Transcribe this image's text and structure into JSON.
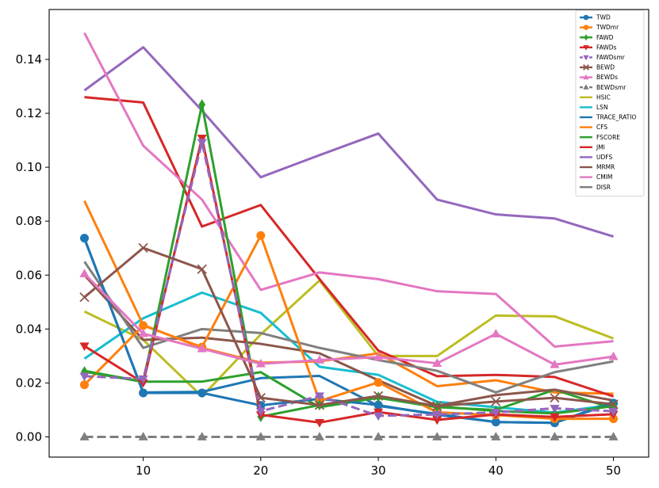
{
  "chart_data": {
    "type": "line",
    "title": "",
    "xlabel": "",
    "ylabel": "",
    "x": [
      5,
      10,
      15,
      20,
      25,
      30,
      35,
      40,
      45,
      50
    ],
    "xlim": [
      2,
      53
    ],
    "ylim": [
      -0.0075,
      0.1585
    ],
    "xticks": [
      10,
      20,
      30,
      40,
      50
    ],
    "xtick_labels": [
      "10",
      "20",
      "30",
      "40",
      "50"
    ],
    "yticks": [
      0.0,
      0.02,
      0.04,
      0.06,
      0.08,
      0.1,
      0.12,
      0.14
    ],
    "ytick_labels": [
      "0.00",
      "0.02",
      "0.04",
      "0.06",
      "0.08",
      "0.10",
      "0.12",
      "0.14"
    ],
    "grid": false,
    "legend_position": "top-right",
    "series": [
      {
        "name": "HSIC",
        "color": "#bcbd22",
        "style": "solid",
        "marker": "none",
        "values": [
          0.0465,
          0.036,
          0.015,
          0.038,
          0.058,
          0.03,
          0.03,
          0.045,
          0.0447,
          0.0365
        ]
      },
      {
        "name": "LSN",
        "color": "#17becf",
        "style": "solid",
        "marker": "none",
        "values": [
          0.029,
          0.044,
          0.0535,
          0.046,
          0.026,
          0.023,
          0.013,
          0.011,
          0.009,
          0.012
        ]
      },
      {
        "name": "TRACE_RATIO",
        "color": "#1f77b4",
        "style": "solid",
        "marker": "none",
        "values": [
          0.0735,
          0.0165,
          0.0167,
          0.0218,
          0.0226,
          0.0115,
          0.0085,
          0.0055,
          0.0052,
          0.013
        ]
      },
      {
        "name": "CFS",
        "color": "#ff7f0e",
        "style": "solid",
        "marker": "none",
        "values": [
          0.0875,
          0.0415,
          0.033,
          0.0275,
          0.028,
          0.031,
          0.0188,
          0.021,
          0.0165,
          0.016
        ]
      },
      {
        "name": "FSCORE",
        "color": "#2ca02c",
        "style": "solid",
        "marker": "none",
        "values": [
          0.0245,
          0.0205,
          0.0205,
          0.024,
          0.011,
          0.0145,
          0.011,
          0.01,
          0.0175,
          0.0105
        ]
      },
      {
        "name": "JMI",
        "color": "#d62728",
        "style": "solid",
        "marker": "none",
        "values": [
          0.126,
          0.124,
          0.078,
          0.086,
          0.0585,
          0.032,
          0.0225,
          0.023,
          0.0222,
          0.015
        ]
      },
      {
        "name": "UDFS",
        "color": "#9467bd",
        "style": "solid",
        "marker": "none",
        "values": [
          0.1285,
          0.1445,
          0.121,
          0.0963,
          0.1045,
          0.1125,
          0.088,
          0.0825,
          0.081,
          0.0743
        ]
      },
      {
        "name": "MRMR",
        "color": "#8c564b",
        "style": "solid",
        "marker": "none",
        "values": [
          0.06,
          0.036,
          0.0368,
          0.0345,
          0.031,
          0.021,
          0.0115,
          0.0155,
          0.0175,
          0.0135
        ]
      },
      {
        "name": "CMIM",
        "color": "#e377c2",
        "style": "solid",
        "marker": "none",
        "values": [
          0.1498,
          0.108,
          0.088,
          0.0545,
          0.061,
          0.0585,
          0.054,
          0.053,
          0.0335,
          0.0355
        ]
      },
      {
        "name": "DISR",
        "color": "#7f7f7f",
        "style": "solid",
        "marker": "none",
        "values": [
          0.065,
          0.033,
          0.04,
          0.0385,
          0.033,
          0.0285,
          0.0245,
          0.0165,
          0.024,
          0.028
        ]
      },
      {
        "name": "TWD",
        "color": "#1f77b4",
        "style": "solid",
        "marker": "circle",
        "values": [
          0.0737,
          0.0163,
          0.0163,
          0.0117,
          0.0141,
          0.0118,
          0.0082,
          0.0055,
          0.0052,
          0.0125
        ]
      },
      {
        "name": "TWDmr",
        "color": "#ff7f0e",
        "style": "solid",
        "marker": "circle",
        "values": [
          0.0193,
          0.0413,
          0.0333,
          0.0747,
          0.0133,
          0.0202,
          0.0091,
          0.0081,
          0.0067,
          0.0067
        ]
      },
      {
        "name": "FAWD",
        "color": "#2ca02c",
        "style": "solid",
        "marker": "diamond",
        "values": [
          0.0242,
          0.0204,
          0.1232,
          0.0075,
          0.0118,
          0.0148,
          0.0113,
          0.0096,
          0.0087,
          0.0114
        ]
      },
      {
        "name": "FAWDs",
        "color": "#d62728",
        "style": "solid",
        "marker": "triangle-down",
        "values": [
          0.0337,
          0.0201,
          0.1108,
          0.0082,
          0.0053,
          0.0092,
          0.0063,
          0.0083,
          0.0074,
          0.0084
        ]
      },
      {
        "name": "FAWDsmr",
        "color": "#9467bd",
        "style": "dashed",
        "marker": "triangle-down",
        "values": [
          0.0225,
          0.0215,
          0.1092,
          0.0095,
          0.0152,
          0.0078,
          0.0083,
          0.0091,
          0.0106,
          0.0095
        ]
      },
      {
        "name": "BEWD",
        "color": "#8c564b",
        "style": "solid",
        "marker": "x",
        "values": [
          0.0518,
          0.0701,
          0.0622,
          0.0145,
          0.0118,
          0.0152,
          0.0114,
          0.0131,
          0.0145,
          0.0121
        ]
      },
      {
        "name": "BEWDs",
        "color": "#e377c2",
        "style": "solid",
        "marker": "triangle-up",
        "values": [
          0.0605,
          0.0383,
          0.0327,
          0.0271,
          0.0285,
          0.0296,
          0.0273,
          0.0382,
          0.0268,
          0.0298
        ]
      },
      {
        "name": "BEWDsmr",
        "color": "#7f7f7f",
        "style": "dashed",
        "marker": "triangle-up",
        "values": [
          0.0,
          0.0,
          0.0,
          0.0,
          0.0,
          0.0,
          0.0,
          0.0,
          0.0,
          0.0
        ]
      }
    ],
    "legend_order": [
      "TWD",
      "TWDmr",
      "FAWD",
      "FAWDs",
      "FAWDsmr",
      "BEWD",
      "BEWDs",
      "BEWDsmr",
      "HSIC",
      "LSN",
      "TRACE_RATIO",
      "CFS",
      "FSCORE",
      "JMI",
      "UDFS",
      "MRMR",
      "CMIM",
      "DISR"
    ]
  }
}
